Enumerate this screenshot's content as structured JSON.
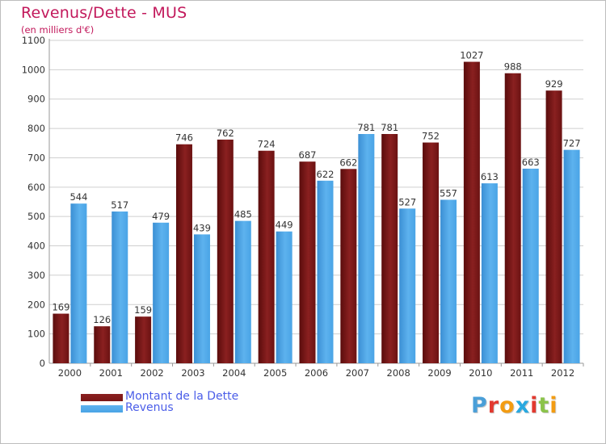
{
  "title": "Revenus/Dette - MUS",
  "subtitle": "(en milliers d'€)",
  "logo": {
    "text": "Proxiti",
    "colors": [
      "#4a9fd8",
      "#e2392f",
      "#f39c12",
      "#29a9e0",
      "#e2392f",
      "#8bc34a",
      "#f39c12"
    ]
  },
  "colors": {
    "debt": "#7a1616",
    "revenue": "#4aa4e6",
    "title": "#c2185b",
    "legend_text": "#4a5de8"
  },
  "chart_data": {
    "type": "bar",
    "title": "Revenus/Dette - MUS",
    "subtitle": "(en milliers d'€)",
    "categories": [
      "2000",
      "2001",
      "2002",
      "2003",
      "2004",
      "2005",
      "2006",
      "2007",
      "2008",
      "2009",
      "2010",
      "2011",
      "2012"
    ],
    "series": [
      {
        "name": "Montant de la Dette",
        "values": [
          169,
          126,
          159,
          746,
          762,
          724,
          687,
          662,
          781,
          752,
          1027,
          988,
          929
        ]
      },
      {
        "name": "Revenus",
        "values": [
          544,
          517,
          479,
          439,
          485,
          449,
          622,
          781,
          527,
          557,
          613,
          663,
          727
        ]
      }
    ],
    "ylim": [
      0,
      1100
    ],
    "yticks": [
      0,
      100,
      200,
      300,
      400,
      500,
      600,
      700,
      800,
      900,
      1000,
      1100
    ],
    "grid": true,
    "legend_position": "bottom-left"
  }
}
